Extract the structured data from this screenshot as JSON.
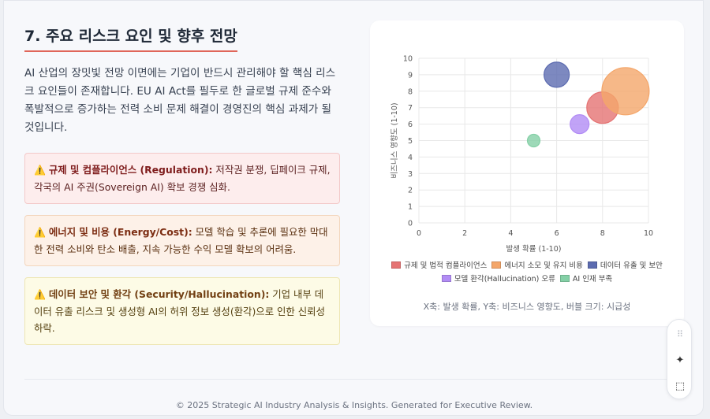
{
  "section": {
    "title": "7. 주요 리스크 요인 및 향후 전망",
    "intro": "AI 산업의 장밋빛 전망 이면에는 기업이 반드시 관리해야 할 핵심 리스크 요인들이 존재합니다. EU AI Act를 필두로 한 글로벌 규제 준수와 폭발적으로 증가하는 전력 소비 문제 해결이 경영진의 핵심 과제가 될 것입니다."
  },
  "risks": [
    {
      "icon": "⚠️",
      "title": "규제 및 컴플라이언스 (Regulation):",
      "text": " 저작권 분쟁, 딥페이크 규제, 각국의 AI 주권(Sovereign AI) 확보 경쟁 심화."
    },
    {
      "icon": "⚠️",
      "title": "에너지 및 비용 (Energy/Cost):",
      "text": " 모델 학습 및 추론에 필요한 막대한 전력 소비와 탄소 배출, 지속 가능한 수익 모델 확보의 어려움."
    },
    {
      "icon": "⚠️",
      "title": "데이터 보안 및 환각 (Security/Hallucination):",
      "text": " 기업 내부 데이터 유출 리스크 및 생성형 AI의 허위 정보 생성(환각)으로 인한 신뢰성 하락."
    }
  ],
  "chart_data": {
    "type": "bubble",
    "xlabel": "발생 확률 (1-10)",
    "ylabel": "비즈니스 영향도 (1-10)",
    "xlim": [
      0,
      10
    ],
    "ylim": [
      0,
      10
    ],
    "x_ticks": [
      "0",
      "2",
      "4",
      "6",
      "8",
      "10"
    ],
    "y_ticks": [
      "0",
      "1",
      "2",
      "3",
      "4",
      "5",
      "6",
      "7",
      "8",
      "9",
      "10"
    ],
    "grid": true,
    "legend_position": "bottom",
    "series": [
      {
        "name": "규제 및 법적 컴플라이언스",
        "x": 8,
        "y": 7,
        "r": 20,
        "color": "#e57373"
      },
      {
        "name": "에너지 소모 및 유지 비용",
        "x": 9,
        "y": 8,
        "r": 30,
        "color": "#f4a66a"
      },
      {
        "name": "데이터 유출 및 보안",
        "x": 6,
        "y": 9,
        "r": 16,
        "color": "#5c6bb0"
      },
      {
        "name": "모델 환각(Hallucination) 오류",
        "x": 7,
        "y": 6,
        "r": 12,
        "color": "#b28cf5"
      },
      {
        "name": "AI 인재 부족",
        "x": 5,
        "y": 5,
        "r": 8,
        "color": "#84d0a6"
      }
    ],
    "caption": "X축: 발생 확률, Y축: 비즈니스 영향도, 버블 크기: 시급성"
  },
  "footer": {
    "text": "© 2025 Strategic AI Industry Analysis & Insights. Generated for Executive Review."
  },
  "toolbar": {
    "icons": [
      "drag-handle-icon",
      "sparkle-icon",
      "select-cursor-icon"
    ]
  }
}
